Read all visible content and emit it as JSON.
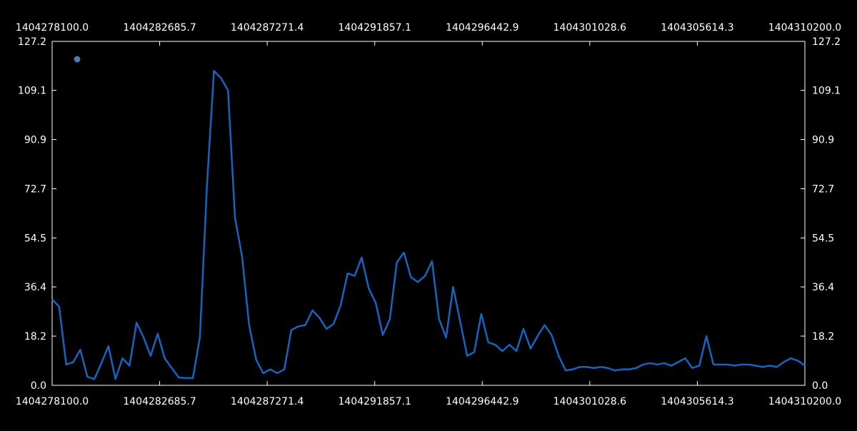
{
  "chart_data": {
    "type": "line",
    "title": "",
    "xlabel": "",
    "ylabel": "",
    "xlim": [
      1404278100.0,
      1404310200.0
    ],
    "ylim": [
      0.0,
      127.2
    ],
    "x_ticks": [
      "1404278100.0",
      "1404282685.7",
      "1404287271.4",
      "1404291857.1",
      "1404296442.9",
      "1404301028.6",
      "1404305614.3",
      "1404310200.0"
    ],
    "y_ticks": [
      "0.0",
      "18.2",
      "36.4",
      "54.5",
      "72.7",
      "90.9",
      "109.1",
      "127.2"
    ],
    "grid": false,
    "legend": {
      "placement": "top-left",
      "marker_color": "#4a7ab8"
    },
    "series": [
      {
        "color": "#1565c0",
        "x": [
          1404278100,
          1404278400,
          1404278700,
          1404279000,
          1404279300,
          1404279600,
          1404279900,
          1404280200,
          1404280500,
          1404280800,
          1404281100,
          1404281400,
          1404281700,
          1404282000,
          1404282300,
          1404282600,
          1404282900,
          1404283200,
          1404283500,
          1404283800,
          1404284100,
          1404284400,
          1404284700,
          1404285000,
          1404285300,
          1404285600,
          1404285900,
          1404286200,
          1404286500,
          1404286800,
          1404287100,
          1404287400,
          1404287700,
          1404288000,
          1404288300,
          1404288600,
          1404288900,
          1404289200,
          1404289500,
          1404289800,
          1404290100,
          1404290400,
          1404290700,
          1404291000,
          1404291300,
          1404291600,
          1404291900,
          1404292200,
          1404292500,
          1404292800,
          1404293100,
          1404293400,
          1404293700,
          1404294000,
          1404294300,
          1404294600,
          1404294900,
          1404295200,
          1404295500,
          1404295800,
          1404296100,
          1404296400,
          1404296700,
          1404297000,
          1404297300,
          1404297600,
          1404297900,
          1404298200,
          1404298500,
          1404298800,
          1404299100,
          1404299400,
          1404299700,
          1404300000,
          1404300300,
          1404300600,
          1404300900,
          1404301200,
          1404301500,
          1404301800,
          1404302100,
          1404302400,
          1404302700,
          1404303000,
          1404303300,
          1404303600,
          1404303900,
          1404304200,
          1404304500,
          1404304800,
          1404305100,
          1404305400,
          1404305700,
          1404306000,
          1404306300,
          1404306600,
          1404306900,
          1404307200,
          1404307500,
          1404307800,
          1404308100,
          1404308400,
          1404308700,
          1404309000,
          1404309300,
          1404309600,
          1404309900,
          1404310200
        ],
        "values": [
          31.8,
          29.1,
          7.7,
          8.6,
          13.2,
          3.2,
          2.3,
          8.2,
          14.5,
          2.3,
          10.0,
          7.3,
          23.2,
          17.7,
          10.9,
          19.1,
          10.0,
          6.4,
          2.9,
          2.7,
          2.7,
          17.7,
          73.6,
          116.3,
          113.6,
          109.1,
          61.8,
          47.7,
          22.3,
          9.5,
          4.5,
          5.9,
          4.5,
          5.9,
          20.5,
          21.8,
          22.3,
          27.7,
          25.0,
          20.9,
          22.7,
          29.5,
          41.4,
          40.5,
          47.3,
          35.9,
          30.5,
          18.6,
          24.5,
          45.5,
          49.1,
          40.0,
          38.2,
          40.5,
          45.9,
          24.5,
          17.7,
          36.4,
          23.6,
          10.9,
          12.3,
          26.4,
          15.9,
          15.0,
          12.7,
          15.0,
          12.7,
          20.9,
          13.6,
          18.2,
          22.3,
          18.6,
          10.9,
          5.5,
          5.9,
          6.8,
          6.8,
          6.4,
          6.8,
          6.4,
          5.5,
          5.9,
          5.9,
          6.4,
          7.7,
          8.2,
          7.7,
          8.2,
          7.3,
          8.6,
          10.0,
          6.4,
          7.3,
          18.2,
          7.7,
          7.7,
          7.7,
          7.3,
          7.7,
          7.7,
          7.3,
          6.8,
          7.3,
          6.8,
          8.6,
          10.0,
          9.1,
          7.3
        ]
      }
    ]
  }
}
